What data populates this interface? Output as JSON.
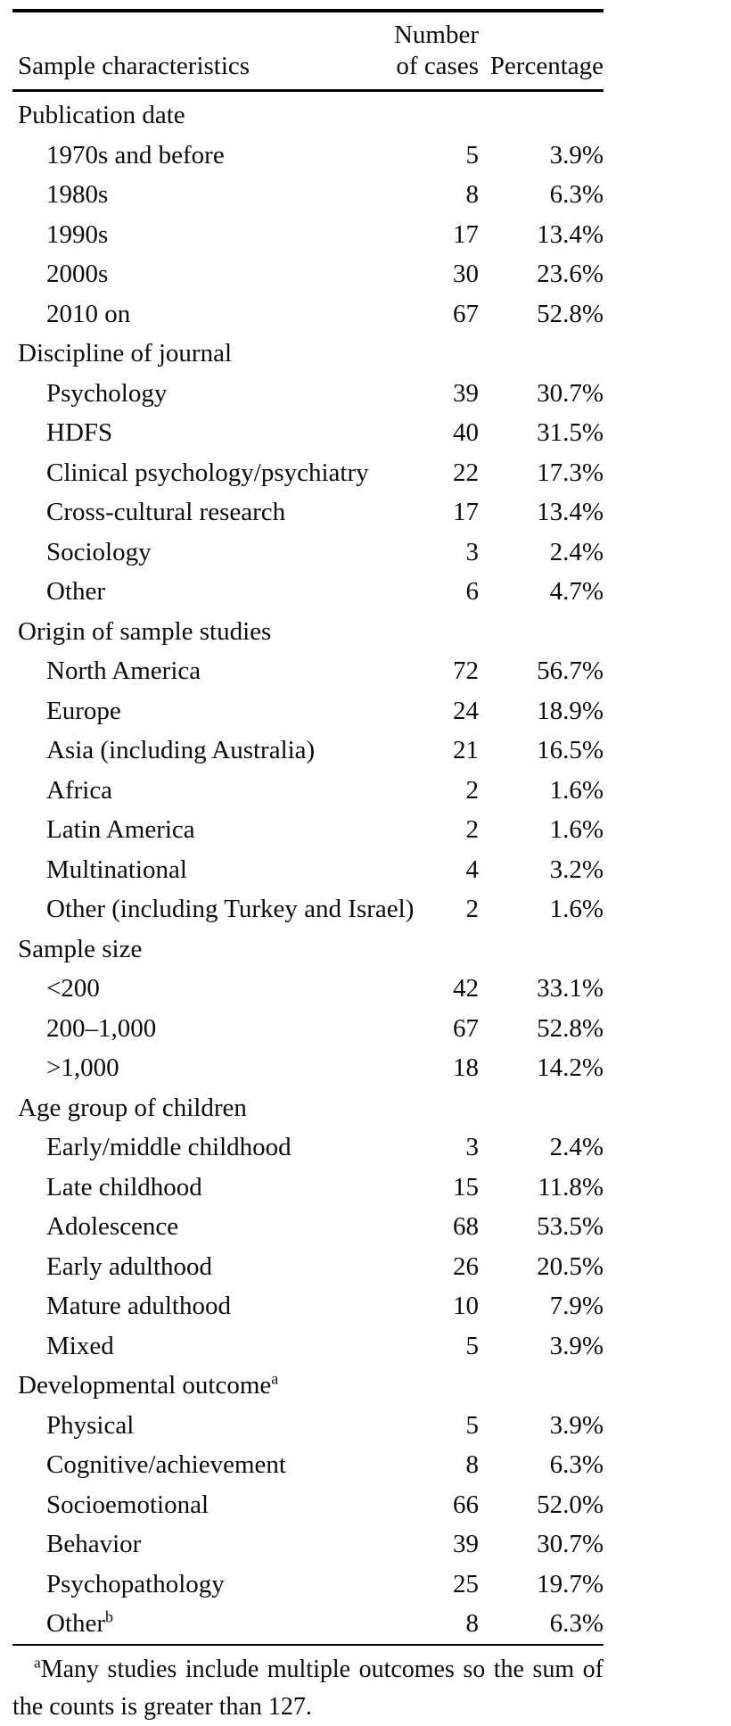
{
  "table": {
    "header": {
      "col1": "Sample characteristics",
      "col2_line1": "Number",
      "col2_line2": "of cases",
      "col3": "Percentage"
    },
    "sections": [
      {
        "title": "Publication date",
        "rows": [
          {
            "label": "1970s and before",
            "cases": "5",
            "pct": "3.9%"
          },
          {
            "label": "1980s",
            "cases": "8",
            "pct": "6.3%"
          },
          {
            "label": "1990s",
            "cases": "17",
            "pct": "13.4%"
          },
          {
            "label": "2000s",
            "cases": "30",
            "pct": "23.6%"
          },
          {
            "label": "2010 on",
            "cases": "67",
            "pct": "52.8%"
          }
        ]
      },
      {
        "title": "Discipline of journal",
        "rows": [
          {
            "label": "Psychology",
            "cases": "39",
            "pct": "30.7%"
          },
          {
            "label": "HDFS",
            "cases": "40",
            "pct": "31.5%"
          },
          {
            "label": "Clinical psychology/psychiatry",
            "cases": "22",
            "pct": "17.3%"
          },
          {
            "label": "Cross-cultural research",
            "cases": "17",
            "pct": "13.4%"
          },
          {
            "label": "Sociology",
            "cases": "3",
            "pct": "2.4%"
          },
          {
            "label": "Other",
            "cases": "6",
            "pct": "4.7%"
          }
        ]
      },
      {
        "title": "Origin of sample studies",
        "rows": [
          {
            "label": "North America",
            "cases": "72",
            "pct": "56.7%"
          },
          {
            "label": "Europe",
            "cases": "24",
            "pct": "18.9%"
          },
          {
            "label": "Asia (including Australia)",
            "cases": "21",
            "pct": "16.5%"
          },
          {
            "label": "Africa",
            "cases": "2",
            "pct": "1.6%"
          },
          {
            "label": "Latin America",
            "cases": "2",
            "pct": "1.6%"
          },
          {
            "label": "Multinational",
            "cases": "4",
            "pct": "3.2%"
          },
          {
            "label": "Other (including Turkey and Israel)",
            "cases": "2",
            "pct": "1.6%"
          }
        ]
      },
      {
        "title": "Sample size",
        "rows": [
          {
            "label": "<200",
            "cases": "42",
            "pct": "33.1%"
          },
          {
            "label": "200–1,000",
            "cases": "67",
            "pct": "52.8%"
          },
          {
            "label": ">1,000",
            "cases": "18",
            "pct": "14.2%"
          }
        ]
      },
      {
        "title": "Age group of children",
        "rows": [
          {
            "label": "Early/middle childhood",
            "cases": "3",
            "pct": "2.4%"
          },
          {
            "label": "Late childhood",
            "cases": "15",
            "pct": "11.8%"
          },
          {
            "label": "Adolescence",
            "cases": "68",
            "pct": "53.5%"
          },
          {
            "label": "Early adulthood",
            "cases": "26",
            "pct": "20.5%"
          },
          {
            "label": "Mature adulthood",
            "cases": "10",
            "pct": "7.9%"
          },
          {
            "label": "Mixed",
            "cases": "5",
            "pct": "3.9%"
          }
        ]
      },
      {
        "title": "Developmental outcome",
        "sup": "a",
        "rows": [
          {
            "label": "Physical",
            "cases": "5",
            "pct": "3.9%"
          },
          {
            "label": "Cognitive/achievement",
            "cases": "8",
            "pct": "6.3%"
          },
          {
            "label": "Socioemotional",
            "cases": "66",
            "pct": "52.0%"
          },
          {
            "label": "Behavior",
            "cases": "39",
            "pct": "30.7%"
          },
          {
            "label": "Psychopathology",
            "cases": "25",
            "pct": "19.7%"
          },
          {
            "label": "Other",
            "sup": "b",
            "cases": "8",
            "pct": "6.3%"
          }
        ]
      }
    ],
    "footnote": {
      "sup": "a",
      "line1": "Many studies include multiple outcomes so the sum of",
      "line2": "the counts is greater than 127."
    }
  }
}
